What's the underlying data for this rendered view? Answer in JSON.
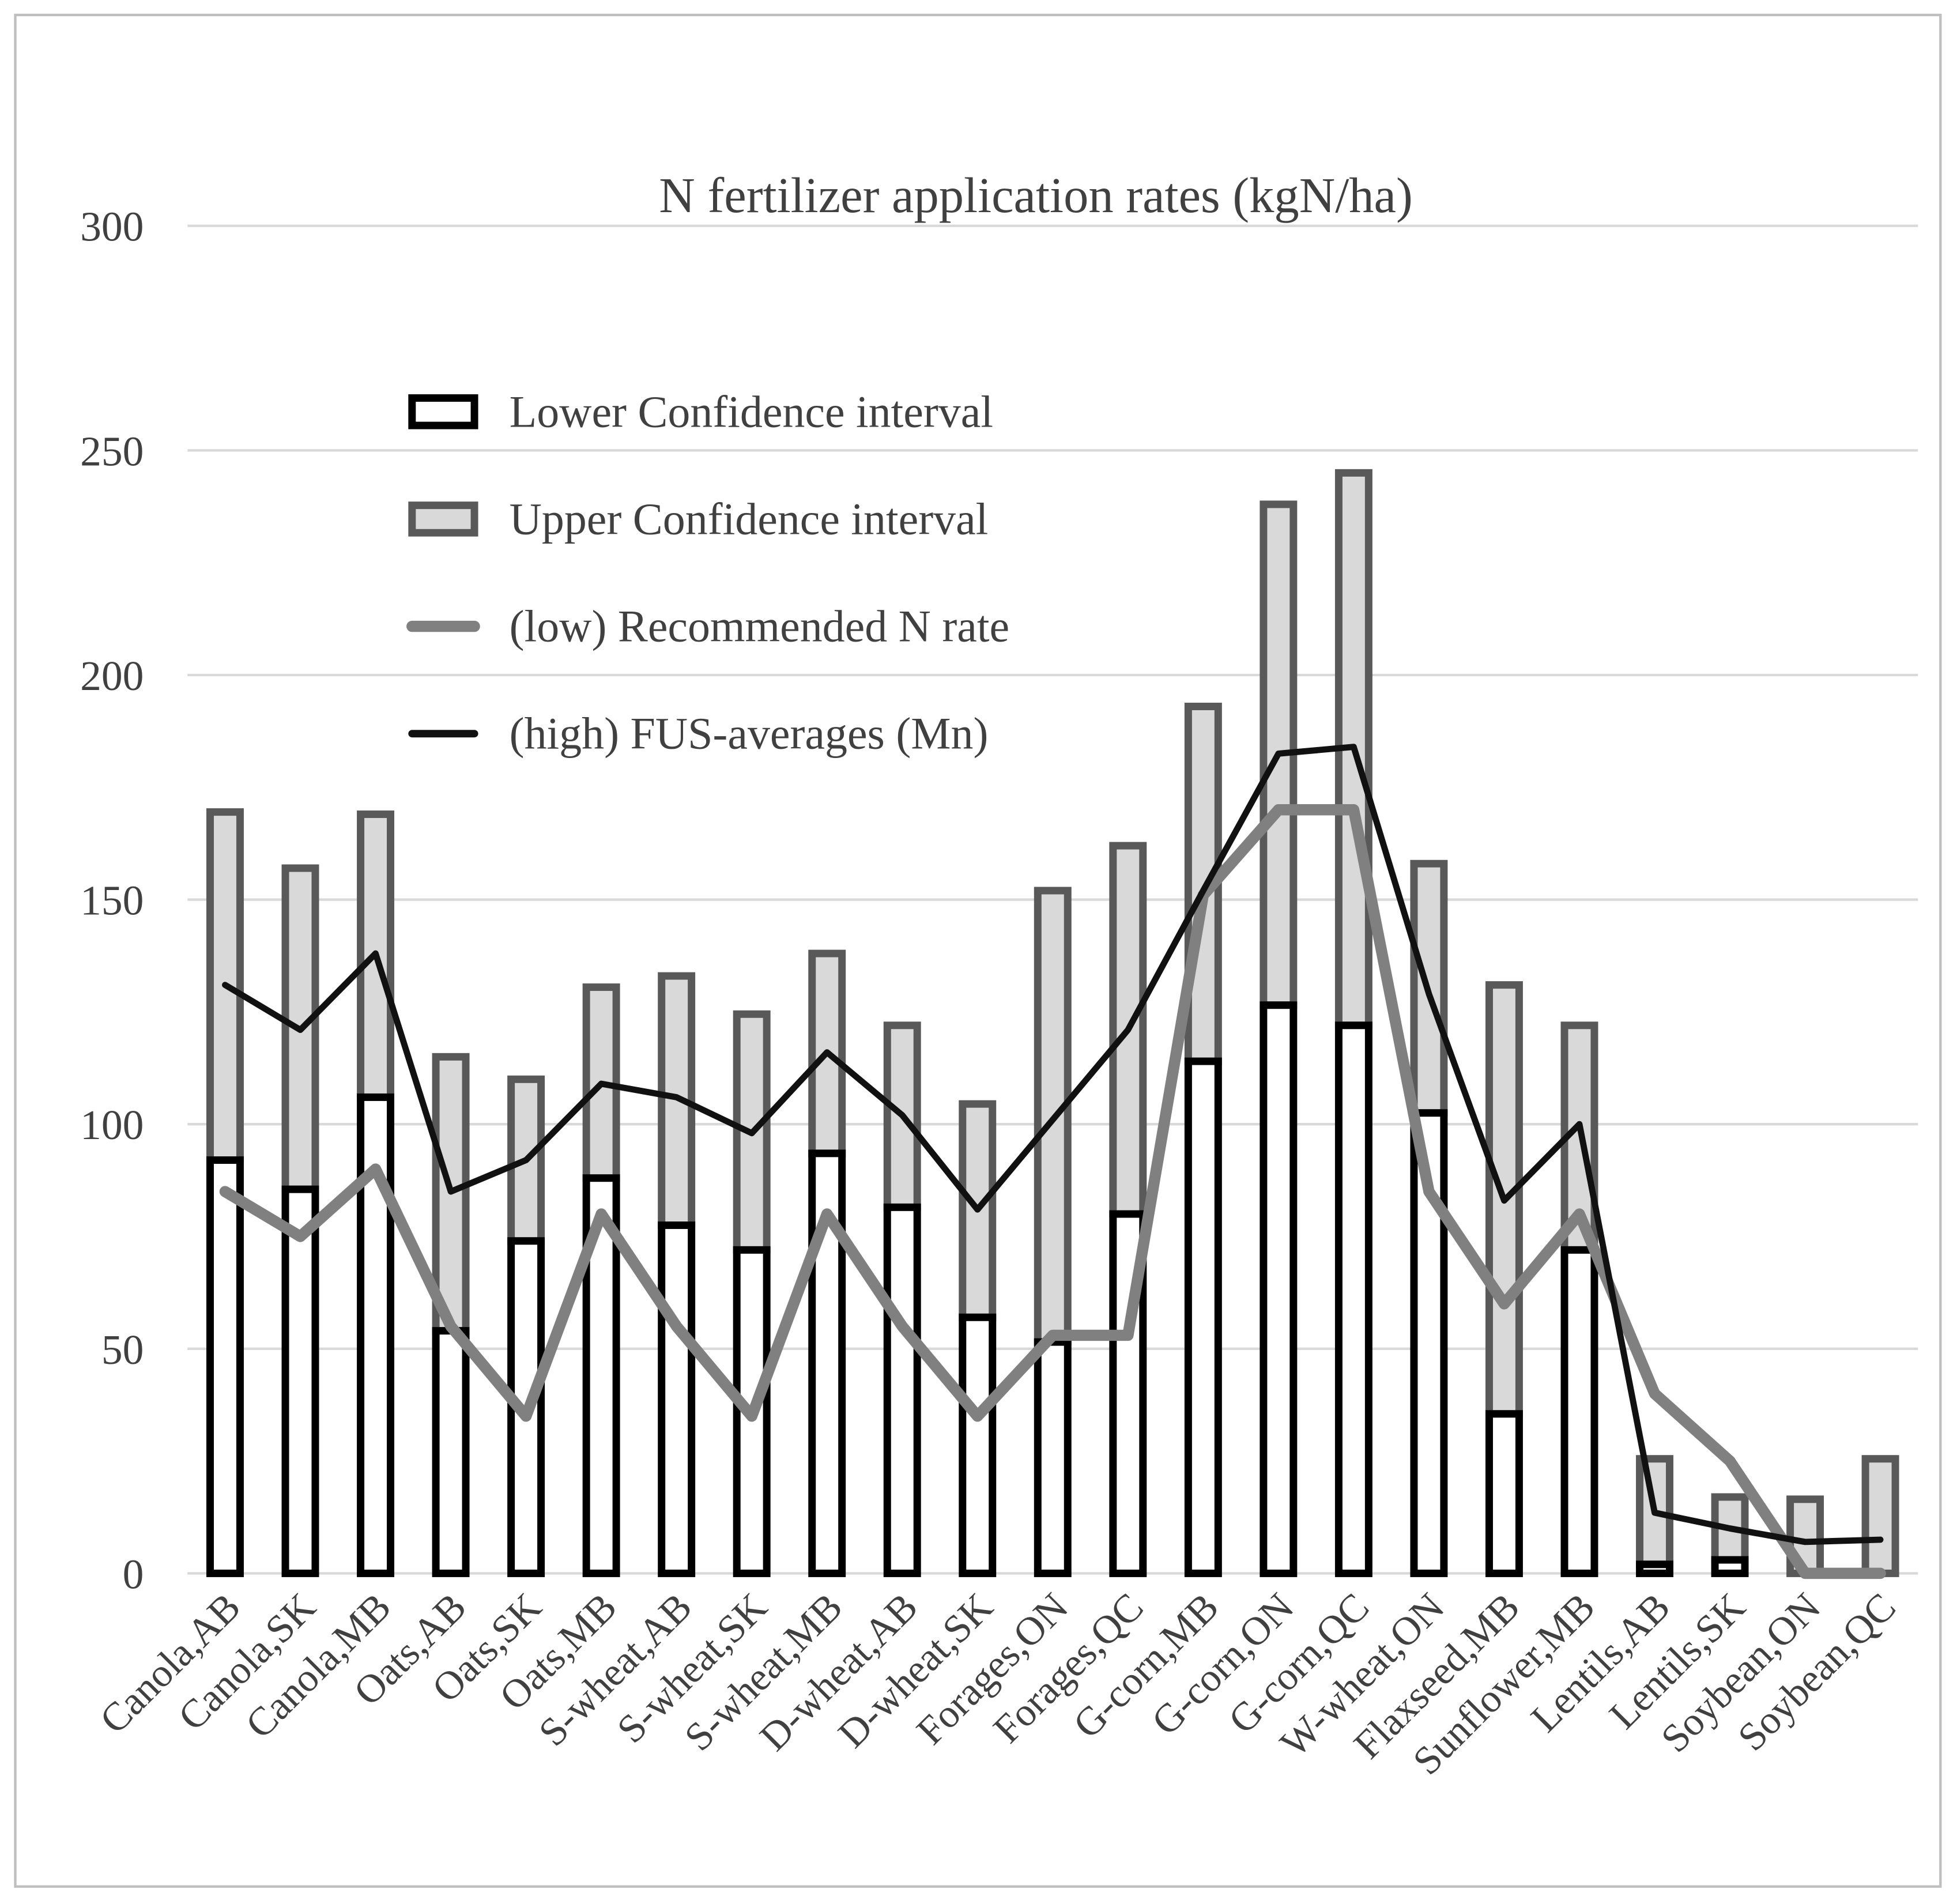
{
  "chart_data": {
    "type": "bar",
    "title": "N fertilizer application rates (kgN/ha)",
    "xlabel": "",
    "ylabel": "",
    "ylim": [
      0,
      300
    ],
    "yticks": [
      "0",
      "50",
      "100",
      "150",
      "200",
      "250",
      "300"
    ],
    "grid": true,
    "legend_position": "top-left",
    "categories": [
      "Canola,AB",
      "Canola,SK",
      "Canola,MB",
      "Oats,AB",
      "Oats,SK",
      "Oats,MB",
      "S-wheat,AB",
      "S-wheat,SK",
      "S-wheat,MB",
      "D-wheat,AB",
      "D-wheat,SK",
      "Forages,ON",
      "Forages,QC",
      "G-corn,MB",
      "G-corn,ON",
      "G-corn,QC",
      "W-wheat,ON",
      "Flaxseed,MB",
      "Sunflower,MB",
      "Lentils,AB",
      "Lentils,SK",
      "Soybean,ON",
      "Soybean,QC"
    ],
    "series": [
      {
        "name": "Lower Confidence interval",
        "kind": "bar",
        "color": "#ffffff",
        "stroke": "#000000",
        "values": [
          92,
          85.5,
          106,
          54,
          74,
          88,
          77.5,
          72,
          93.5,
          81.5,
          57,
          51.5,
          80,
          114,
          126.5,
          122,
          102.5,
          35.5,
          72,
          2,
          3,
          0,
          0
        ]
      },
      {
        "name": "Upper Confidence interval",
        "kind": "bar",
        "color": "#d9d9d9",
        "stroke": "#595959",
        "values": [
          169.5,
          157,
          169,
          115,
          110,
          130.5,
          133,
          124.5,
          138,
          122,
          104.5,
          152,
          162,
          193,
          238,
          245,
          158,
          131,
          122,
          25.5,
          17,
          16.5,
          25.5
        ]
      },
      {
        "name": " (low) Recommended N rate",
        "kind": "line",
        "color": "#808080",
        "values": [
          85,
          75,
          90,
          55,
          35,
          80,
          55,
          35,
          80,
          55,
          35,
          53,
          53,
          151,
          170,
          170,
          85,
          60,
          80,
          40,
          25,
          0,
          0
        ]
      },
      {
        "name": " (high) FUS-averages (Mn)",
        "kind": "line",
        "color": "#111111",
        "values": [
          131,
          121,
          138,
          85,
          92,
          109,
          106,
          98,
          116,
          102,
          81,
          101,
          121,
          152,
          182.5,
          184,
          129,
          83,
          100,
          13.5,
          10,
          7,
          7.5
        ]
      }
    ]
  }
}
